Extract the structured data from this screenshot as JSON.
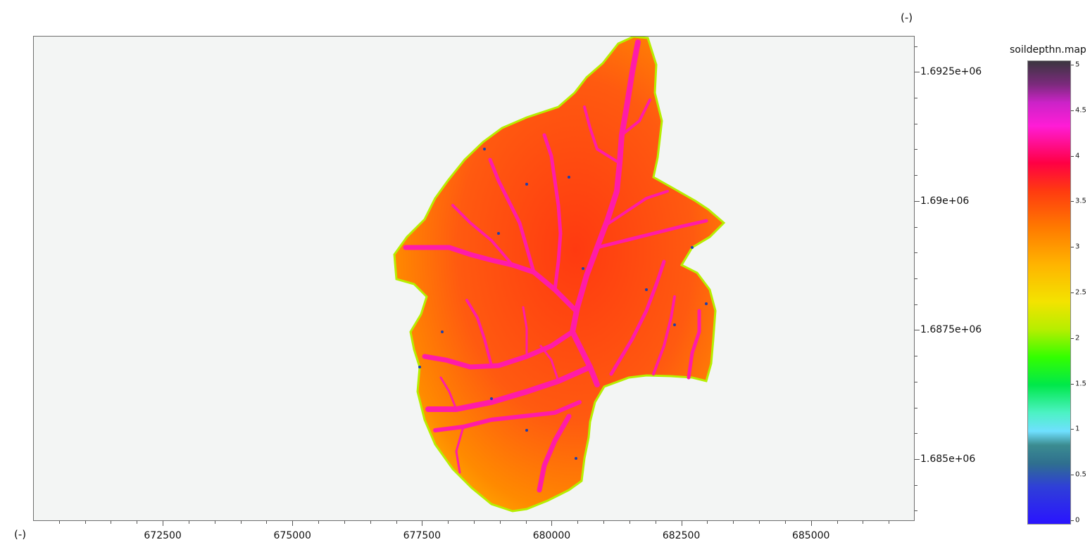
{
  "unit_top_right": "(-)",
  "unit_bottom_left": "(-)",
  "legend": {
    "title": "soildepthn.map",
    "range": [
      0,
      5
    ],
    "ticks": [
      "0",
      "0.5",
      "1",
      "1.5",
      "2",
      "2.5",
      "3",
      "3.5",
      "4",
      "4.5",
      "5"
    ]
  },
  "x_axis": {
    "labels": [
      "672500",
      "675000",
      "677500",
      "680000",
      "682500",
      "685000"
    ],
    "values": [
      672500,
      675000,
      677500,
      680000,
      682500,
      685000
    ],
    "range": [
      670000,
      687000
    ]
  },
  "y_axis": {
    "labels": [
      "1.6925e+06",
      "1.69e+06",
      "1.6875e+06",
      "1.685e+06"
    ],
    "values": [
      1692500,
      1690000,
      1687500,
      1685000
    ],
    "range": [
      1683800,
      1693200
    ]
  },
  "colors": {
    "background": "#f3f5f4",
    "catchment_fill": "#ff5a10",
    "channel": "#ff1ca8",
    "edge_high": "#ffd000",
    "edge_low": "#1c3fb0"
  }
}
